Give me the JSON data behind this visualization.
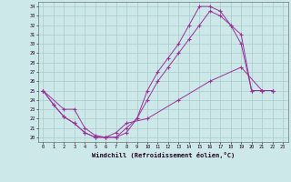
{
  "bg_color": "#cce8e8",
  "line_color": "#993399",
  "grid_color": "#aacccc",
  "xlim": [
    -0.5,
    23.5
  ],
  "ylim": [
    19.5,
    34.5
  ],
  "xticks": [
    0,
    1,
    2,
    3,
    4,
    5,
    6,
    7,
    8,
    9,
    10,
    11,
    12,
    13,
    14,
    15,
    16,
    17,
    18,
    19,
    20,
    21,
    22,
    23
  ],
  "yticks": [
    20,
    21,
    22,
    23,
    24,
    25,
    26,
    27,
    28,
    29,
    30,
    31,
    32,
    33,
    34
  ],
  "xlabel": "Windchill (Refroidissement éolien,°C)",
  "series": [
    {
      "x": [
        0,
        1,
        2,
        3,
        4,
        5,
        6,
        7,
        8,
        9,
        10,
        11,
        12,
        13,
        14,
        15,
        16,
        17,
        18,
        19,
        20,
        21,
        22
      ],
      "y": [
        25,
        23.5,
        22.2,
        21.5,
        20.5,
        20,
        20,
        20,
        20.5,
        22,
        25,
        27,
        28.5,
        30,
        32,
        34,
        34,
        33.5,
        32,
        30,
        25,
        25,
        25
      ]
    },
    {
      "x": [
        0,
        1,
        2,
        3,
        4,
        5,
        6,
        7,
        8,
        9,
        10,
        11,
        12,
        13,
        14,
        15,
        16,
        17,
        18,
        19,
        20,
        21,
        22
      ],
      "y": [
        25,
        23.5,
        22.2,
        21.5,
        20.5,
        20,
        20,
        20,
        21,
        22,
        24,
        26,
        27.5,
        29,
        30.5,
        32,
        33.5,
        33,
        32,
        31,
        25,
        25,
        25
      ]
    },
    {
      "x": [
        0,
        2,
        3,
        4,
        5,
        6,
        7,
        8,
        10,
        13,
        16,
        19,
        21,
        22
      ],
      "y": [
        25,
        23,
        23,
        21,
        20.2,
        20,
        20.5,
        21.5,
        22,
        24,
        26,
        27.5,
        25,
        25
      ]
    }
  ]
}
